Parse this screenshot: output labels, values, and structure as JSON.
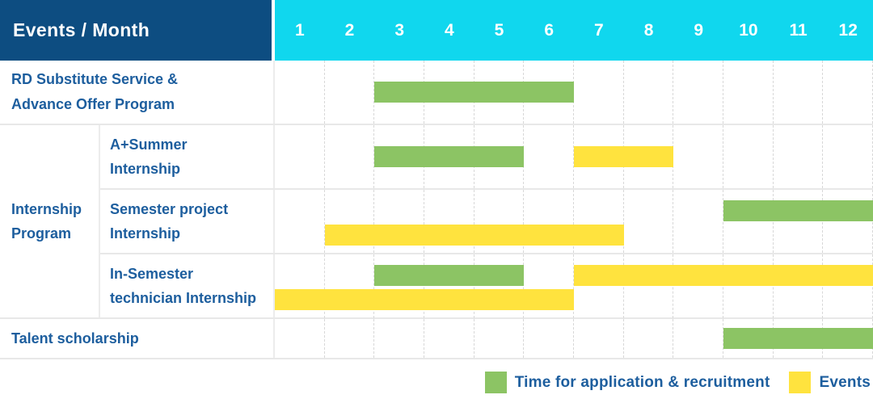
{
  "header": {
    "events_month_label": "Events / Month"
  },
  "colors": {
    "header_bg": "#0d4d81",
    "months_header_bg": "#10d7ee",
    "label_text": "#1d5e9e",
    "grid_solid": "#e8e8e8",
    "grid_dashed": "#d8d8d8",
    "green": "#8cc464",
    "yellow": "#ffe33e"
  },
  "chart_data": {
    "type": "gantt",
    "title": "Events / Month",
    "x_axis": {
      "unit": "month",
      "range": [
        1,
        12
      ]
    },
    "x_ticks": [
      "1",
      "2",
      "3",
      "4",
      "5",
      "6",
      "7",
      "8",
      "9",
      "10",
      "11",
      "12"
    ],
    "series": [
      {
        "key": "application",
        "name": "Time for application & recruitment",
        "color": "#8cc464"
      },
      {
        "key": "events",
        "name": "Events",
        "color": "#ffe33e"
      }
    ],
    "legend_position": "bottom-right",
    "groups": [
      {
        "label": "",
        "rows": [
          {
            "label": "RD Substitute Service & Advance Offer Program",
            "lines": [
              "RD Substitute Service &",
              "Advance Offer Program"
            ],
            "bars": [
              {
                "series": "application",
                "start": 3,
                "end": 6,
                "lane": "center"
              }
            ]
          }
        ]
      },
      {
        "label": "Internship Program",
        "rows": [
          {
            "label": "A+Summer Internship",
            "lines": [
              "A+Summer",
              "Internship"
            ],
            "bars": [
              {
                "series": "application",
                "start": 3,
                "end": 5,
                "lane": "center"
              },
              {
                "series": "events",
                "start": 7,
                "end": 8,
                "lane": "center"
              }
            ]
          },
          {
            "label": "Semester project Internship",
            "lines": [
              "Semester project",
              "Internship"
            ],
            "bars": [
              {
                "series": "application",
                "start": 10,
                "end": 12,
                "lane": "top"
              },
              {
                "series": "events",
                "start": 2,
                "end": 7,
                "lane": "bottom"
              }
            ]
          },
          {
            "label": "In-Semester technician Internship",
            "lines": [
              "In-Semester",
              "technician Internship"
            ],
            "bars": [
              {
                "series": "application",
                "start": 3,
                "end": 5,
                "lane": "top"
              },
              {
                "series": "events",
                "start": 7,
                "end": 12,
                "lane": "top"
              },
              {
                "series": "events",
                "start": 1,
                "end": 6,
                "lane": "bottom"
              }
            ]
          }
        ]
      },
      {
        "label": "",
        "rows": [
          {
            "label": "Talent scholarship",
            "lines": [
              "Talent scholarship"
            ],
            "bars": [
              {
                "series": "application",
                "start": 10,
                "end": 12,
                "lane": "center"
              }
            ]
          }
        ]
      }
    ]
  }
}
